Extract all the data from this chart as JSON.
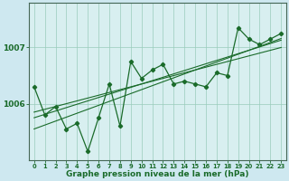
{
  "xlabel": "Graphe pression niveau de la mer (hPa)",
  "background_color": "#cee8f0",
  "plot_bg_color": "#d8eff0",
  "grid_color": "#99ccbb",
  "line_color": "#1a6b2a",
  "x_values": [
    0,
    1,
    2,
    3,
    4,
    5,
    6,
    7,
    8,
    9,
    10,
    11,
    12,
    13,
    14,
    15,
    16,
    17,
    18,
    19,
    20,
    21,
    22,
    23
  ],
  "y_values": [
    1006.3,
    1005.8,
    1005.95,
    1005.55,
    1005.65,
    1005.15,
    1005.75,
    1006.35,
    1005.6,
    1006.75,
    1006.45,
    1006.6,
    1006.7,
    1006.35,
    1006.4,
    1006.35,
    1006.3,
    1006.55,
    1006.5,
    1007.35,
    1007.15,
    1007.05,
    1007.15,
    1007.25
  ],
  "trend1": [
    1005.55,
    1005.62,
    1005.69,
    1005.76,
    1005.83,
    1005.9,
    1005.97,
    1006.04,
    1006.11,
    1006.18,
    1006.25,
    1006.32,
    1006.39,
    1006.46,
    1006.53,
    1006.6,
    1006.67,
    1006.74,
    1006.81,
    1006.88,
    1006.95,
    1007.02,
    1007.09,
    1007.16
  ],
  "trend2": [
    1005.75,
    1005.81,
    1005.87,
    1005.93,
    1005.99,
    1006.05,
    1006.11,
    1006.17,
    1006.23,
    1006.29,
    1006.35,
    1006.41,
    1006.47,
    1006.53,
    1006.59,
    1006.65,
    1006.71,
    1006.77,
    1006.83,
    1006.89,
    1006.95,
    1007.01,
    1007.07,
    1007.13
  ],
  "trend3": [
    1005.85,
    1005.9,
    1005.95,
    1006.0,
    1006.05,
    1006.1,
    1006.15,
    1006.2,
    1006.25,
    1006.3,
    1006.35,
    1006.4,
    1006.45,
    1006.5,
    1006.55,
    1006.6,
    1006.65,
    1006.7,
    1006.75,
    1006.8,
    1006.85,
    1006.9,
    1006.95,
    1007.0
  ],
  "ylim": [
    1005.0,
    1007.8
  ],
  "yticks": [
    1006,
    1007
  ],
  "xticks": [
    0,
    1,
    2,
    3,
    4,
    5,
    6,
    7,
    8,
    9,
    10,
    11,
    12,
    13,
    14,
    15,
    16,
    17,
    18,
    19,
    20,
    21,
    22,
    23
  ]
}
